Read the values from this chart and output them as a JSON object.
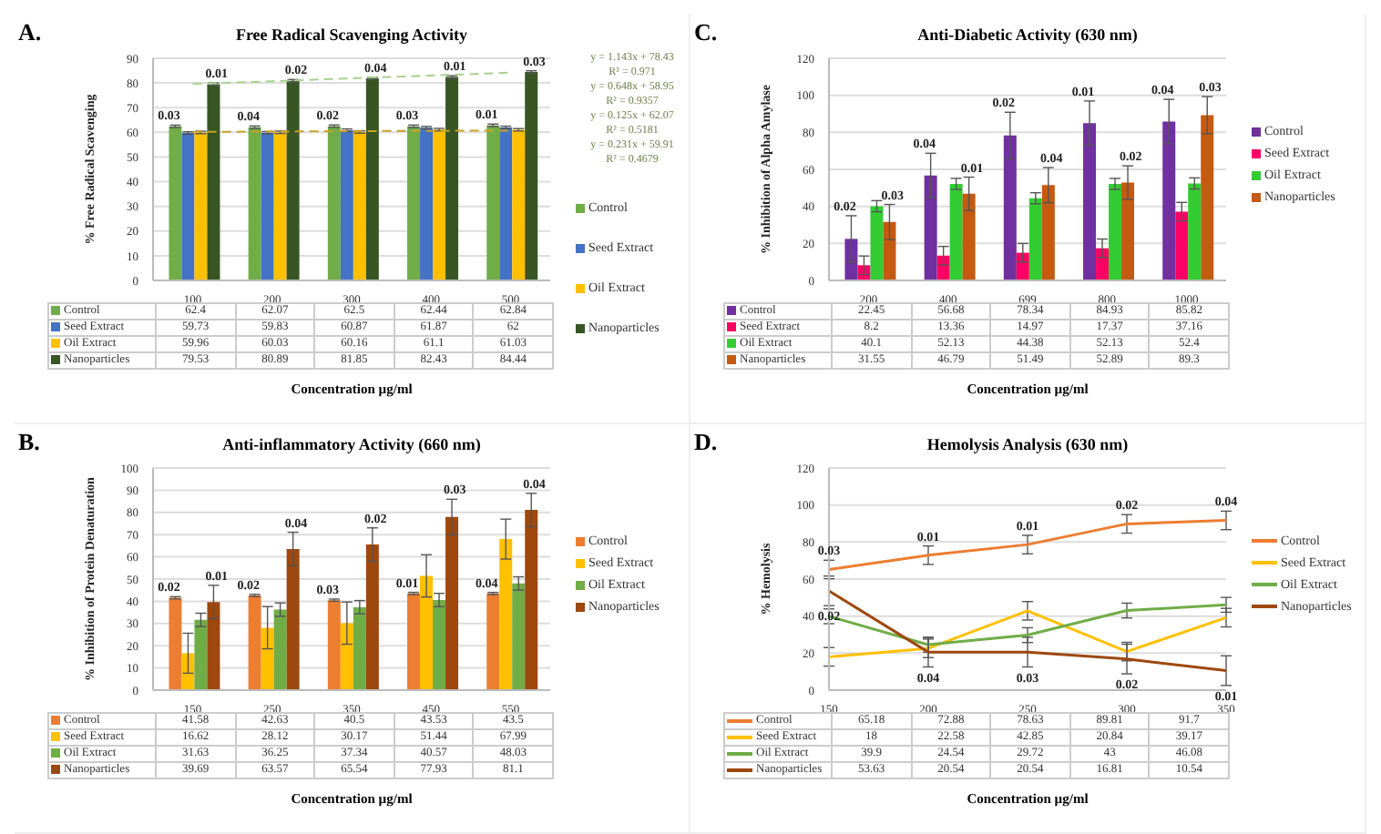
{
  "chart_data": [
    {
      "type": "bar",
      "title": "Free Radical Scavenging Activity",
      "xlabel": "Concentration µg/ml",
      "ylabel": "% Free Radical Scavenging",
      "categories": [
        "100",
        "200",
        "300",
        "400",
        "500"
      ],
      "ylim": [
        0,
        90
      ],
      "yticks": [
        0,
        10,
        20,
        30,
        40,
        50,
        60,
        70,
        80,
        90
      ],
      "grid": "y",
      "legend": "right",
      "marker": "none",
      "data_labels": true,
      "series": [
        {
          "name": "Control",
          "color": "#70ad47",
          "values": [
            62.4,
            62.07,
            62.5,
            62.44,
            62.84
          ],
          "errors": [
            0.5,
            0.5,
            0.5,
            0.5,
            0.5
          ]
        },
        {
          "name": "Seed Extract",
          "color": "#4472c4",
          "values": [
            59.73,
            59.83,
            60.87,
            61.87,
            62
          ],
          "errors": [
            0.5,
            0.5,
            0.5,
            0.5,
            0.5
          ]
        },
        {
          "name": "Oil Extract",
          "color": "#ffc000",
          "values": [
            59.96,
            60.03,
            60.16,
            61.1,
            61.03
          ],
          "errors": [
            0.5,
            0.5,
            0.5,
            0.5,
            0.5
          ]
        },
        {
          "name": "Nanoparticles",
          "color": "#375623",
          "values": [
            79.53,
            80.89,
            81.85,
            82.43,
            84.44
          ],
          "errors": [
            0.5,
            0.5,
            0.5,
            0.5,
            0.5
          ]
        },
        {
          "type": "line",
          "line_style": "dashed",
          "color": "#a9d18e",
          "values": [
            79.6,
            80.7,
            81.9,
            83,
            84.2
          ],
          "value_labels": [
            null,
            null,
            null,
            null,
            null
          ]
        },
        {
          "type": "line",
          "line_style": "dashed",
          "color": "#c9a227",
          "values": [
            60.2,
            60.3,
            60.5,
            60.6,
            60.7
          ],
          "value_labels": [
            null,
            null,
            null,
            null,
            null
          ]
        }
      ],
      "annotations": [
        "A.",
        "y = 1.143x + 78.43",
        "R² = 0.971",
        "y = 0.648x + 58.95",
        "R² = 0.9357",
        "y = 0.125x + 62.07",
        "R² = 0.5181",
        "y = 0.231x + 59.91",
        "R² = 0.4679",
        {
          "text": "0.03",
          "x": "100",
          "y": 62.4
        },
        {
          "text": "0.01",
          "x": "100",
          "y": 79.53
        },
        {
          "text": "0.04",
          "x": "200",
          "y": 62.07
        },
        {
          "text": "0.02",
          "x": "200",
          "y": 80.89
        },
        {
          "text": "0.02",
          "x": "300",
          "y": 62.5
        },
        {
          "text": "0.04",
          "x": "300",
          "y": 81.85
        },
        {
          "text": "0.03",
          "x": "400",
          "y": 62.44
        },
        {
          "text": "0.01",
          "x": "400",
          "y": 82.43
        },
        {
          "text": "0.01",
          "x": "500",
          "y": 62.84
        },
        {
          "text": "0.03",
          "x": "500",
          "y": 84.44
        }
      ]
    },
    {
      "type": "bar",
      "title": "Anti-Diabetic Activity (630 nm)",
      "xlabel": "Concentration µg/ml",
      "ylabel": "% Inhibition of Alpha Amylase",
      "categories": [
        "200",
        "400",
        "699",
        "800",
        "1000"
      ],
      "ylim": [
        0,
        120
      ],
      "yticks": [
        0,
        20,
        40,
        60,
        80,
        100,
        120
      ],
      "grid": "y",
      "legend": "right",
      "data_labels": true,
      "series": [
        {
          "name": "Control",
          "color": "#7030a0",
          "values": [
            22.45,
            56.68,
            78.34,
            84.93,
            85.82
          ],
          "errors": [
            12.5,
            12,
            12.5,
            12,
            12
          ]
        },
        {
          "name": "Seed Extract",
          "color": "#ff0066",
          "values": [
            8.2,
            13.36,
            14.97,
            17.37,
            37.16
          ],
          "errors": [
            5,
            5,
            5,
            5,
            5
          ]
        },
        {
          "name": "Oil Extract",
          "color": "#33cc33",
          "values": [
            40.1,
            52.13,
            44.38,
            52.13,
            52.4
          ],
          "errors": [
            3,
            3,
            3,
            3,
            3
          ]
        },
        {
          "name": "Nanoparticles",
          "color": "#c55a11",
          "values": [
            31.55,
            46.79,
            51.49,
            52.89,
            89.3
          ],
          "errors": [
            9.5,
            9,
            9.5,
            9,
            10
          ]
        }
      ],
      "annotations": [
        "C.",
        "0.02",
        "0.03",
        "0.04",
        "0.01",
        "0.02",
        "0.04",
        "0.01",
        "0.02",
        "0.04",
        "0.03"
      ]
    },
    {
      "type": "bar",
      "title": "Anti-inflammatory Activity (660 nm)",
      "xlabel": "Concentration µg/ml",
      "ylabel": "% Inhibition of Protein Denaturation",
      "categories": [
        "150",
        "250",
        "350",
        "450",
        "550"
      ],
      "ylim": [
        0,
        100
      ],
      "yticks": [
        0,
        10,
        20,
        30,
        40,
        50,
        60,
        70,
        80,
        90,
        100
      ],
      "grid": "y",
      "legend": "right",
      "data_labels": true,
      "series": [
        {
          "name": "Control",
          "color": "#ed7d31",
          "values": [
            41.58,
            42.63,
            40.5,
            43.53,
            43.5
          ],
          "errors": [
            0.5,
            0.5,
            0.5,
            0.5,
            0.5
          ]
        },
        {
          "name": "Seed Extract",
          "color": "#ffc000",
          "values": [
            16.62,
            28.12,
            30.17,
            51.44,
            67.99
          ],
          "errors": [
            9,
            9.5,
            9.5,
            9.5,
            9
          ]
        },
        {
          "name": "Oil Extract",
          "color": "#70ad47",
          "values": [
            31.63,
            36.25,
            37.34,
            40.57,
            48.03
          ],
          "errors": [
            3,
            3,
            3,
            3,
            3
          ]
        },
        {
          "name": "Nanoparticles",
          "color": "#9e480e",
          "values": [
            39.69,
            63.57,
            65.54,
            77.93,
            81.1
          ],
          "errors": [
            7.5,
            7.5,
            7.5,
            8,
            7.5
          ]
        }
      ],
      "annotations": [
        "B.",
        "0.02",
        "0.01",
        "0.02",
        "0.04",
        "0.03",
        "0.02",
        "0.01",
        "0.03",
        "0.04",
        "0.04"
      ]
    },
    {
      "type": "line",
      "title": "Hemolysis Analysis (630 nm)",
      "xlabel": "Concentration µg/ml",
      "ylabel": "% Hemolysis",
      "categories": [
        "150",
        "200",
        "250",
        "300",
        "350"
      ],
      "ylim": [
        0,
        120
      ],
      "yticks": [
        0,
        20,
        40,
        60,
        80,
        100,
        120
      ],
      "grid": "y",
      "legend": "right",
      "marker": "none",
      "data_labels": true,
      "series": [
        {
          "name": "Control",
          "color": "#ed7d31",
          "values": [
            65.18,
            72.88,
            78.63,
            89.81,
            91.7
          ],
          "errors": [
            5,
            5,
            5,
            5,
            5
          ]
        },
        {
          "name": "Seed Extract",
          "color": "#ffc000",
          "values": [
            18,
            22.58,
            42.85,
            20.84,
            39.17
          ],
          "errors": [
            5,
            5,
            5,
            5,
            5
          ]
        },
        {
          "name": "Oil Extract",
          "color": "#70ad47",
          "values": [
            39.9,
            24.54,
            29.72,
            43,
            46.08
          ],
          "errors": [
            4,
            4,
            4,
            4,
            4
          ]
        },
        {
          "name": "Nanoparticles",
          "color": "#9e480e",
          "values": [
            53.63,
            20.54,
            20.54,
            16.81,
            10.54
          ],
          "errors": [
            8,
            8,
            8,
            8,
            8
          ]
        }
      ],
      "annotations": [
        "D.",
        {
          "text": "0.03",
          "x": "150",
          "y": 65.18
        },
        {
          "text": "0.01",
          "x": "200",
          "y": 72.88
        },
        {
          "text": "0.01",
          "x": "250",
          "y": 78.63
        },
        {
          "text": "0.02",
          "x": "300",
          "y": 89.81
        },
        {
          "text": "0.04",
          "x": "350",
          "y": 91.7
        },
        {
          "text": "0.02",
          "x": "150",
          "y": 53.63
        },
        {
          "text": "0.04",
          "x": "200",
          "y": 20.54
        },
        {
          "text": "0.03",
          "x": "250",
          "y": 20.54
        },
        {
          "text": "0.02",
          "x": "300",
          "y": 16.81
        },
        {
          "text": "0.01",
          "x": "350",
          "y": 10.54
        }
      ]
    }
  ]
}
